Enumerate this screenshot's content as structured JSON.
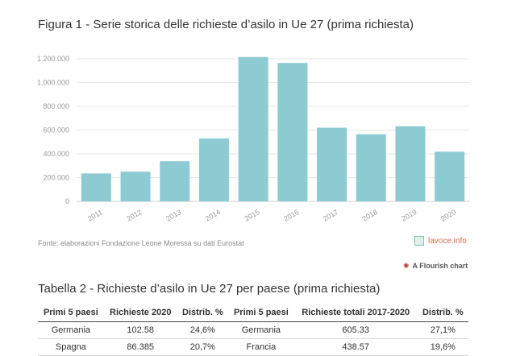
{
  "figure_title": "Figura 1 - Serie storica delle richieste d’asilo in Ue 27 (prima richiesta)",
  "source_note": "Fonte: elaborazioni Fondazione Leone Moressa su dati Eurostat",
  "brand": {
    "text": "lavoce.info",
    "icon": "lavoce-logo-icon"
  },
  "flourish": {
    "text": "A Flourish chart",
    "icon": "flourish-logo-icon"
  },
  "table_title": "Tabella 2 - Richieste d’asilo in Ue 27 per paese (prima richiesta)",
  "table": {
    "headers": [
      "Primi 5 paesi",
      "Richieste 2020",
      "Distrib. %",
      "Primi 5 paesi",
      "Richieste totali 2017-2020",
      "Distrib. %"
    ],
    "rows": [
      [
        "Germania",
        "102.58",
        "24,6%",
        "Germania",
        "605.33",
        "27,1%"
      ],
      [
        "Spagna",
        "86.385",
        "20,7%",
        "Francia",
        "438.57",
        "19,6%"
      ]
    ]
  },
  "colors": {
    "bar": "#8ccbd2",
    "grid": "#e6e6e6",
    "tick": "#999999"
  },
  "chart_data": {
    "type": "bar",
    "categories": [
      "2011",
      "2012",
      "2013",
      "2014",
      "2015",
      "2016",
      "2017",
      "2018",
      "2019",
      "2020"
    ],
    "values": [
      235000,
      250000,
      338000,
      530000,
      1215000,
      1165000,
      620000,
      565000,
      632000,
      418000
    ],
    "ylim": [
      0,
      1200000
    ],
    "yticks": [
      0,
      200000,
      400000,
      600000,
      800000,
      1000000,
      1200000
    ],
    "ytick_labels": [
      "0",
      "200.000",
      "400.000",
      "600.000",
      "800.000",
      "1.000.000",
      "1.200.000"
    ],
    "grid": true,
    "title": "",
    "xlabel": "",
    "ylabel": ""
  }
}
